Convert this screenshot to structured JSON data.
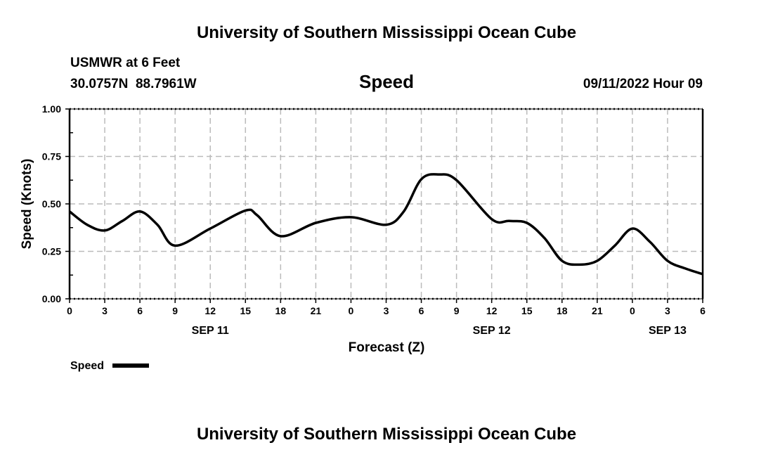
{
  "chart_data": {
    "type": "line",
    "title": "University of Southern Mississippi Ocean Cube",
    "footer_title": "University of Southern Mississippi Ocean Cube",
    "station": "USMWR at 6 Feet",
    "location": "30.0757N  88.7961W",
    "subtitle": "Speed",
    "datetime": "09/11/2022 Hour 09",
    "xlabel": "Forecast (Z)",
    "ylabel": "Speed (Knots)",
    "ylim": [
      0,
      1
    ],
    "xlim_hours": [
      0,
      54
    ],
    "yticks": [
      "0.00",
      "0.25",
      "0.50",
      "0.75",
      "1.00"
    ],
    "xtick_labels": [
      "0",
      "3",
      "6",
      "9",
      "12",
      "15",
      "18",
      "21",
      "0",
      "3",
      "6",
      "9",
      "12",
      "15",
      "18",
      "21",
      "0",
      "3",
      "6"
    ],
    "date_labels": [
      {
        "label": "SEP 11",
        "hour": 12
      },
      {
        "label": "SEP 12",
        "hour": 36
      },
      {
        "label": "SEP 13",
        "hour": 51
      }
    ],
    "grid": true,
    "legend": {
      "label": "Speed",
      "placement": "bottom-left"
    },
    "series": [
      {
        "name": "Speed",
        "color": "#000000",
        "x": [
          0,
          1.5,
          3,
          4.5,
          6,
          7.5,
          9,
          12,
          15,
          16,
          18,
          21,
          24,
          27,
          28.5,
          30,
          31.5,
          33,
          36,
          37.5,
          39,
          40.5,
          42,
          43.5,
          45,
          46.5,
          48,
          49.5,
          51,
          52.5,
          54
        ],
        "values": [
          0.46,
          0.39,
          0.36,
          0.41,
          0.46,
          0.39,
          0.28,
          0.37,
          0.465,
          0.44,
          0.33,
          0.4,
          0.43,
          0.39,
          0.46,
          0.63,
          0.655,
          0.625,
          0.42,
          0.41,
          0.4,
          0.32,
          0.2,
          0.18,
          0.2,
          0.28,
          0.37,
          0.3,
          0.2,
          0.16,
          0.13
        ]
      }
    ]
  }
}
